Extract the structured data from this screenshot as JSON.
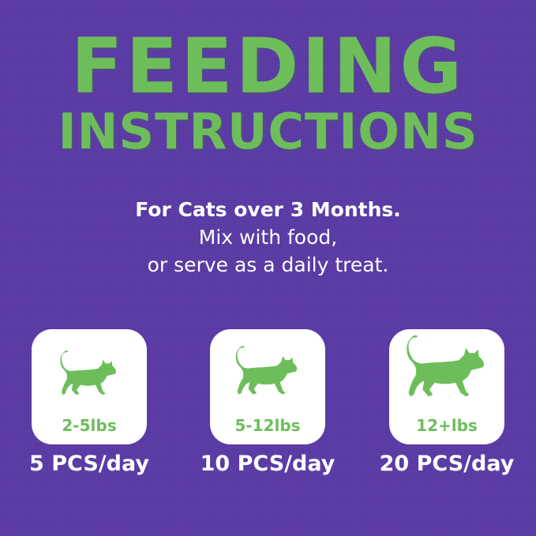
{
  "title": {
    "line1": "FEEDING",
    "line2": "INSTRUCTIONS"
  },
  "subtitle": {
    "line1": "For Cats over 3 Months.",
    "line2": "Mix with food,",
    "line3": "or serve as a daily treat."
  },
  "cards": [
    {
      "weight": "2-5lbs",
      "dose": "5 PCS/day",
      "icon": "cat-icon"
    },
    {
      "weight": "5-12lbs",
      "dose": "10 PCS/day",
      "icon": "cat-icon"
    },
    {
      "weight": "12+lbs",
      "dose": "20 PCS/day",
      "icon": "cat-icon"
    }
  ],
  "colors": {
    "background": "#5b3aa6",
    "accent": "#6dbe5b",
    "card": "#ffffff"
  }
}
